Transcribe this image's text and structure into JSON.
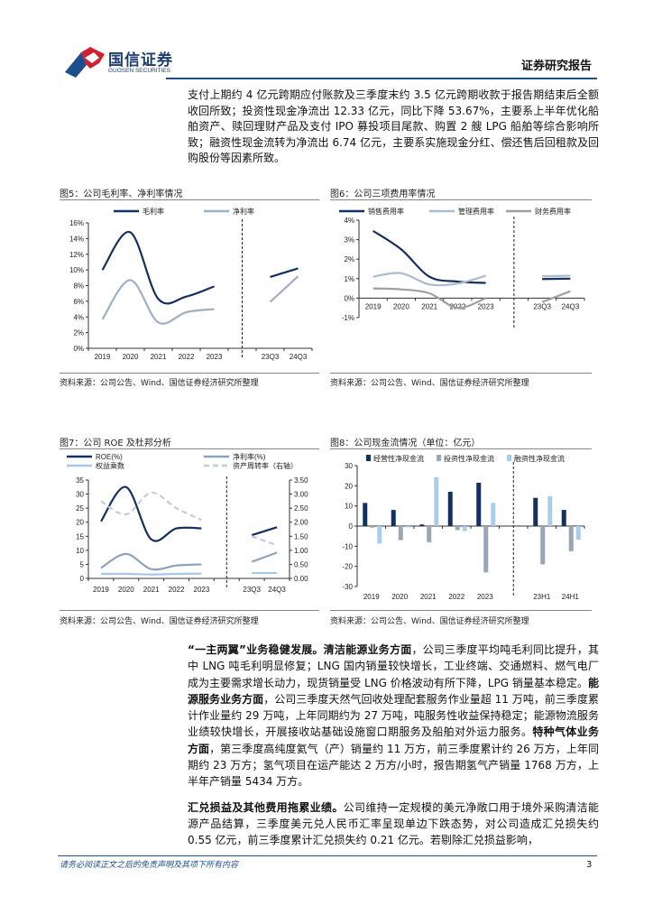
{
  "header": {
    "logo_cn": "国信证券",
    "logo_en": "GUOSEN SECURITIES",
    "report_type": "证券研究报告"
  },
  "para1": "支付上期约 4 亿元跨期应付账款及三季度末约 3.5 亿元跨期收款于报告期结束后全额收回所致；投资性现金净流出 12.33 亿元，同比下降 53.67%，主要系上半年优化船舶资产、赎回理财产品及支付 IPO 募投项目尾款、购置 2 艘 LPG 船舶等综合影响所致；融资性现金流转为净流出 6.74 亿元，主要系实施现金分红、偿还售后回租款及回购股份等因素所致。",
  "para2": {
    "b1": "“一主两翼”业务稳健发展。清洁能源业务方面",
    "t1": "，公司三季度平均吨毛利同比提升，其中 LNG 吨毛利明显修复；LNG 国内销量较快增长，工业终端、交通燃料、燃气电厂成为主要需求增长动力，现货销量受 LNG 价格波动有所下降，LPG 销量基本稳定。",
    "b2": "能源服务业务方面",
    "t2": "，公司三季度天然气回收处理配套服务作业量超 11 万吨，前三季度累计作业量约 29 万吨，上年同期约为 27 万吨，吨服务性收益保持稳定；能源物流服务业绩较快增长，开展接收站基础设施窗口期服务及船舶对外运力服务。",
    "b3": "特种气体业务方面",
    "t3": "，第三季度高纯度氦气（产）销量约 11 万方，前三季度累计约 26 万方，上年同期约 23 万方；氢气项目在运产能达 2 万方/小时，报告期氢气产销量 1768 万方，上半年产销量 5434 万方。"
  },
  "para3": {
    "b1": "汇兑损益及其他费用拖累业绩。",
    "t1": "公司维持一定规模的美元净敞口用于境外采购清洁能源产品结算，三季度美元兑人民币汇率呈现单边下跌态势，对公司造成汇兑损失约 0.55 亿元，前三季度累计汇兑损失约 0.21 亿元。若剔除汇兑损益影响，"
  },
  "footer": {
    "disclaimer": "请务必阅读正文之后的免责声明及其项下所有内容",
    "page": "3"
  },
  "chart_data": [
    {
      "type": "line",
      "title": "图5：公司毛利率、净利率情况",
      "source": "资料来源：公司公告、Wind、国信证券经济研究所整理",
      "categories": [
        "2019",
        "2020",
        "2021",
        "2022",
        "2023",
        "23Q3",
        "24Q3"
      ],
      "ylim": [
        0,
        16
      ],
      "yticks": [
        "0%",
        "2%",
        "4%",
        "6%",
        "8%",
        "10%",
        "12%",
        "14%",
        "16%"
      ],
      "series": [
        {
          "name": "毛利率",
          "color": "#14305e",
          "values": [
            10,
            14.8,
            6.3,
            6.6,
            7.9,
            9.1,
            10.2
          ]
        },
        {
          "name": "净利率",
          "color": "#9fb0c4",
          "values": [
            3.7,
            8.7,
            3.3,
            4.6,
            5.0,
            5.9,
            9.2
          ]
        }
      ]
    },
    {
      "type": "line",
      "title": "图6：公司三项费用率情况",
      "source": "资料来源：公司公告、Wind、国信证券经济研究所整理",
      "categories": [
        "2019",
        "2020",
        "2021",
        "2022",
        "2023",
        "23Q3",
        "24Q3"
      ],
      "ylim": [
        -1,
        4
      ],
      "yticks": [
        "-1%",
        "0%",
        "1%",
        "2%",
        "3%",
        "4%"
      ],
      "series": [
        {
          "name": "销售费用率",
          "color": "#14305e",
          "values": [
            3.45,
            2.5,
            1.1,
            0.85,
            0.78,
            0.98,
            1.0
          ]
        },
        {
          "name": "管理费用率",
          "color": "#a9bbd0",
          "values": [
            1.1,
            1.28,
            0.7,
            0.75,
            1.15,
            1.12,
            1.15
          ]
        },
        {
          "name": "财务费用率",
          "color": "#a0a0a0",
          "values": [
            0.5,
            0.45,
            0.25,
            -0.5,
            0.0,
            -0.2,
            0.35
          ]
        }
      ]
    },
    {
      "type": "line",
      "title": "图7：公司 ROE 及杜邦分析",
      "source": "资料来源：公司公告、Wind、国信证券经济研究所整理",
      "categories": [
        "2019",
        "2020",
        "2021",
        "2022",
        "2023",
        "23Q3",
        "24Q3"
      ],
      "ylim": [
        0,
        35
      ],
      "y2lim": [
        0,
        3.5
      ],
      "yticks": [
        "0",
        "5",
        "10",
        "15",
        "20",
        "25",
        "30",
        "35"
      ],
      "y2ticks": [
        "0.00",
        "0.50",
        "1.00",
        "1.50",
        "2.00",
        "2.50",
        "3.00",
        "3.50"
      ],
      "series": [
        {
          "name": "ROE(%)",
          "color": "#14305e",
          "values": [
            20.3,
            32.5,
            13.9,
            17.8,
            17.8,
            15.4,
            18.2
          ]
        },
        {
          "name": "净利率(%)",
          "color": "#8ea2bb",
          "values": [
            3.7,
            8.7,
            3.3,
            4.6,
            5.0,
            5.9,
            9.2
          ]
        },
        {
          "name": "权益乘数",
          "color": "#a8c6e6",
          "values": [
            1.6,
            1.6,
            1.4,
            1.6,
            1.7,
            1.9,
            1.9
          ]
        },
        {
          "name": "资产周转率（右轴）",
          "color": "#c6ccd6",
          "dashed": true,
          "axis": "right",
          "values": [
            2.75,
            2.28,
            3.05,
            2.5,
            2.08,
            1.5,
            1.18
          ]
        }
      ]
    },
    {
      "type": "bar",
      "title": "图8：公司现金流情况（单位：亿元）",
      "source": "资料来源：公司公告、Wind、国信证券经济研究所整理",
      "categories": [
        "2019",
        "2020",
        "2021",
        "2022",
        "2023",
        "23H1",
        "24H1"
      ],
      "ylim": [
        -30,
        30
      ],
      "yticks": [
        "-30",
        "-20",
        "-10",
        "0",
        "10",
        "20",
        "30"
      ],
      "series": [
        {
          "name": "经营性净现金流",
          "color": "#14305e",
          "values": [
            11.5,
            8,
            0.8,
            17,
            21.5,
            14,
            8
          ]
        },
        {
          "name": "投资性净现金流",
          "color": "#9aa6b4",
          "values": [
            -0.8,
            -7,
            -8,
            -2,
            -23,
            -19,
            -12.5
          ]
        },
        {
          "name": "融资性净现金流",
          "color": "#a8cdea",
          "values": [
            -8.7,
            -0.7,
            24.2,
            -2.5,
            11.5,
            14.8,
            -6.8
          ]
        }
      ]
    }
  ]
}
